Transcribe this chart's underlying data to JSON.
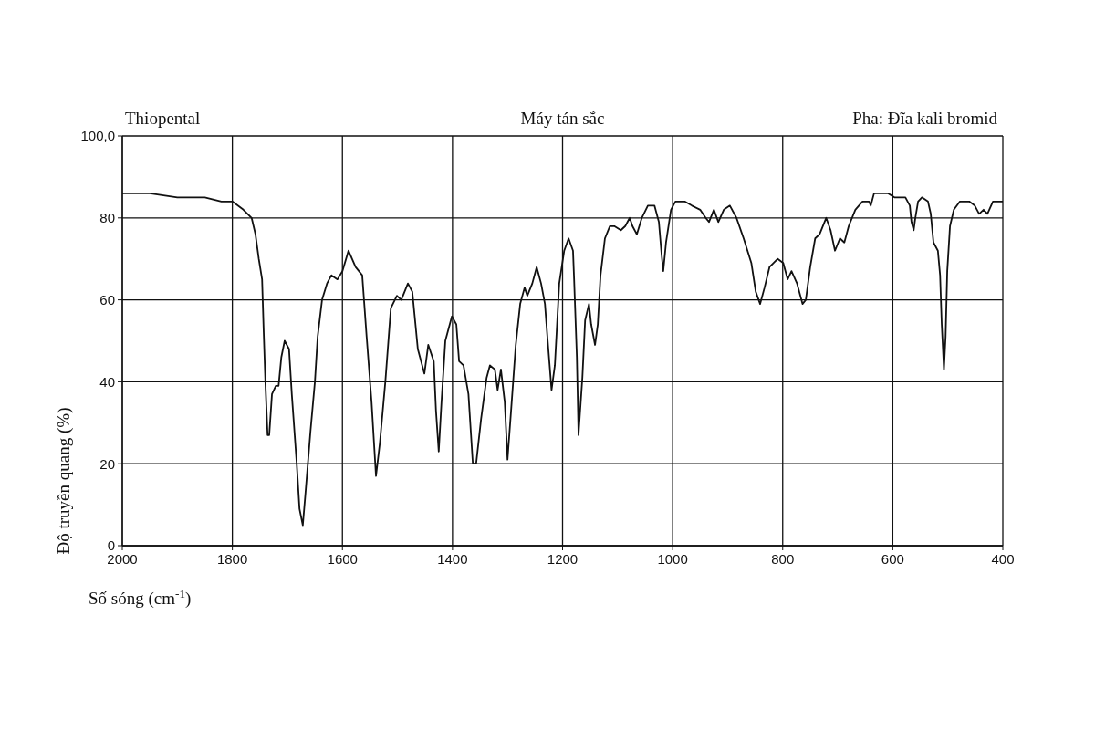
{
  "chart_data": {
    "type": "line",
    "title": "Thiopental",
    "annotations": [
      "Máy tán sắc",
      "Pha: Đĩa kali bromid"
    ],
    "xlabel": "Số sóng (cm$^{-1}$)",
    "ylabel": "Độ truyền quang (%)",
    "x": [
      2000,
      1950,
      1900,
      1850,
      1820,
      1800,
      1780,
      1765,
      1758,
      1752,
      1746,
      1743,
      1740,
      1736,
      1733,
      1728,
      1721,
      1716,
      1711,
      1705,
      1697,
      1692,
      1683,
      1678,
      1672,
      1667,
      1658,
      1650,
      1645,
      1637,
      1628,
      1620,
      1609,
      1600,
      1589,
      1576,
      1564,
      1556,
      1547,
      1539,
      1532,
      1522,
      1512,
      1501,
      1493,
      1481,
      1473,
      1463,
      1455,
      1451,
      1444,
      1434,
      1430,
      1425,
      1420,
      1413,
      1401,
      1393,
      1388,
      1380,
      1371,
      1363,
      1357,
      1348,
      1338,
      1332,
      1323,
      1318,
      1312,
      1305,
      1300,
      1293,
      1285,
      1277,
      1269,
      1264,
      1255,
      1247,
      1239,
      1232,
      1227,
      1220,
      1214,
      1206,
      1197,
      1189,
      1181,
      1179,
      1174,
      1171,
      1164,
      1159,
      1152,
      1148,
      1141,
      1136,
      1131,
      1123,
      1114,
      1106,
      1094,
      1086,
      1078,
      1073,
      1065,
      1056,
      1045,
      1033,
      1025,
      1020,
      1017,
      1012,
      1003,
      995,
      978,
      965,
      950,
      940,
      934,
      925,
      917,
      907,
      896,
      884,
      871,
      857,
      849,
      841,
      833,
      824,
      809,
      799,
      791,
      784,
      774,
      764,
      758,
      750,
      741,
      733,
      721,
      713,
      705,
      696,
      688,
      680,
      668,
      655,
      643,
      640,
      634,
      625,
      609,
      597,
      577,
      569,
      566,
      562,
      559,
      554,
      547,
      536,
      531,
      526,
      518,
      514,
      511,
      507,
      504,
      501,
      496,
      489,
      478,
      461,
      451,
      443,
      435,
      428,
      418,
      406,
      400
    ],
    "values": [
      86,
      86,
      85,
      85,
      84,
      84,
      82,
      80,
      76,
      70,
      65,
      52,
      40,
      27,
      27,
      37,
      39,
      39,
      46,
      50,
      48,
      37,
      20,
      9,
      5,
      13,
      28,
      40,
      51,
      60,
      64,
      66,
      65,
      67,
      72,
      68,
      66,
      51,
      35,
      17,
      25,
      40,
      58,
      61,
      60,
      64,
      62,
      48,
      44,
      42,
      49,
      45,
      33,
      23,
      35,
      50,
      56,
      54,
      45,
      44,
      37,
      20,
      20,
      31,
      41,
      44,
      43,
      38,
      43,
      35,
      21,
      34,
      49,
      59,
      63,
      61,
      64,
      68,
      64,
      59,
      50,
      38,
      44,
      64,
      72,
      75,
      72,
      65,
      46,
      27,
      41,
      55,
      59,
      54,
      49,
      54,
      66,
      75,
      78,
      78,
      77,
      78,
      80,
      78,
      76,
      80,
      83,
      83,
      79,
      71,
      67,
      74,
      82,
      84,
      84,
      83,
      82,
      80,
      79,
      82,
      79,
      82,
      83,
      80,
      75,
      69,
      62,
      59,
      63,
      68,
      70,
      69,
      65,
      67,
      64,
      59,
      60,
      68,
      75,
      76,
      80,
      77,
      72,
      75,
      74,
      78,
      82,
      84,
      84,
      83,
      86,
      86,
      86,
      85,
      85,
      83,
      79,
      77,
      80,
      84,
      85,
      84,
      81,
      74,
      72,
      66,
      54,
      43,
      51,
      67,
      78,
      82,
      84,
      84,
      83,
      81,
      82,
      81,
      84,
      84,
      84
    ],
    "color": "#111111",
    "xlim": [
      2000,
      400
    ],
    "xticks": [
      2000,
      1800,
      1600,
      1400,
      1200,
      1000,
      800,
      600,
      400
    ],
    "ylim": [
      0,
      100
    ],
    "yticks": [
      0,
      20,
      40,
      60,
      80,
      {
        "value": 100,
        "label": "100,0"
      }
    ],
    "grid": true
  }
}
